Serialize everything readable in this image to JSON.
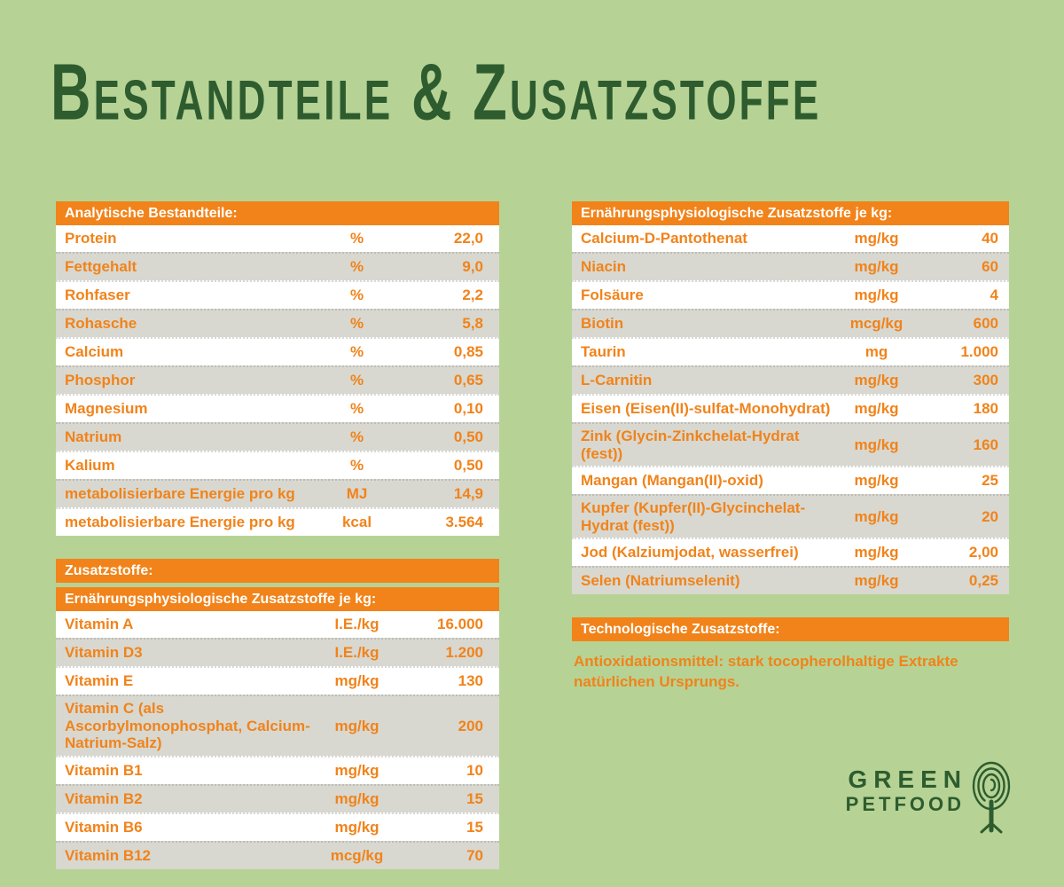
{
  "page": {
    "title": "Bestandteile & Zusatzstoffe",
    "colors": {
      "background": "#b6d395",
      "accent_orange": "#f1831a",
      "dark_green": "#2e5c2f",
      "row_gray": "#d8d8d0",
      "row_white": "#ffffff"
    }
  },
  "left": {
    "analytical": {
      "header": "Analytische Bestandteile:",
      "rows": [
        {
          "name": "Protein",
          "unit": "%",
          "value": "22,0"
        },
        {
          "name": "Fettgehalt",
          "unit": "%",
          "value": "9,0"
        },
        {
          "name": "Rohfaser",
          "unit": "%",
          "value": "2,2"
        },
        {
          "name": "Rohasche",
          "unit": "%",
          "value": "5,8"
        },
        {
          "name": "Calcium",
          "unit": "%",
          "value": "0,85"
        },
        {
          "name": "Phosphor",
          "unit": "%",
          "value": "0,65"
        },
        {
          "name": "Magnesium",
          "unit": "%",
          "value": "0,10"
        },
        {
          "name": "Natrium",
          "unit": "%",
          "value": "0,50"
        },
        {
          "name": "Kalium",
          "unit": "%",
          "value": "0,50"
        },
        {
          "name": "metabolisierbare Energie pro kg",
          "unit": "MJ",
          "value": "14,9"
        },
        {
          "name": "metabolisierbare Energie pro kg",
          "unit": "kcal",
          "value": "3.564"
        }
      ]
    },
    "additives_header": "Zusatzstoffe:",
    "nutritional": {
      "header": "Ernährungsphysiologische Zusatzstoffe je kg:",
      "rows": [
        {
          "name": "Vitamin A",
          "unit": "I.E./kg",
          "value": "16.000"
        },
        {
          "name": "Vitamin D3",
          "unit": "I.E./kg",
          "value": "1.200"
        },
        {
          "name": "Vitamin E",
          "unit": "mg/kg",
          "value": "130"
        },
        {
          "name": "Vitamin C (als Ascorbylmonophos­phat, Calcium-Natrium-Salz)",
          "unit": "mg/kg",
          "value": "200"
        },
        {
          "name": "Vitamin B1",
          "unit": "mg/kg",
          "value": "10"
        },
        {
          "name": "Vitamin B2",
          "unit": "mg/kg",
          "value": "15"
        },
        {
          "name": "Vitamin B6",
          "unit": "mg/kg",
          "value": "15"
        },
        {
          "name": "Vitamin B12",
          "unit": "mcg/kg",
          "value": "70"
        }
      ]
    }
  },
  "right": {
    "nutritional": {
      "header": "Ernährungsphysiologische Zusatzstoffe je kg:",
      "rows": [
        {
          "name": "Calcium-D-Pantothenat",
          "unit": "mg/kg",
          "value": "40"
        },
        {
          "name": "Niacin",
          "unit": "mg/kg",
          "value": "60"
        },
        {
          "name": "Folsäure",
          "unit": "mg/kg",
          "value": "4"
        },
        {
          "name": "Biotin",
          "unit": "mcg/kg",
          "value": "600"
        },
        {
          "name": "Taurin",
          "unit": "mg",
          "value": "1.000"
        },
        {
          "name": "L-Carnitin",
          "unit": "mg/kg",
          "value": "300"
        },
        {
          "name": "Eisen (Eisen(II)-sulfat-Monohydrat)",
          "unit": "mg/kg",
          "value": "180"
        },
        {
          "name": "Zink (Glycin-Zinkchelat-Hydrat (fest))",
          "unit": "mg/kg",
          "value": "160"
        },
        {
          "name": "Mangan (Mangan(II)-oxid)",
          "unit": "mg/kg",
          "value": "25"
        },
        {
          "name": "Kupfer (Kupfer(II)-Glycinchelat-Hydrat (fest))",
          "unit": "mg/kg",
          "value": "20"
        },
        {
          "name": "Jod (Kalziumjodat, wasserfrei)",
          "unit": "mg/kg",
          "value": "2,00"
        },
        {
          "name": "Selen (Natriumselenit)",
          "unit": "mg/kg",
          "value": "0,25"
        }
      ]
    },
    "technological": {
      "header": "Technologische Zusatzstoffe:",
      "text": "Antioxidationsmittel: stark tocopherolhaltige Extrakte natürlichen Ursprungs."
    }
  },
  "logo": {
    "line1": "GREEN",
    "line2": "PETFOOD"
  }
}
